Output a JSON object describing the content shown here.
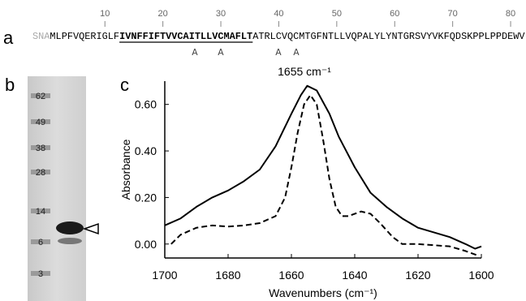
{
  "panel_a": {
    "label": "a",
    "ruler": [
      10,
      20,
      30,
      40,
      50,
      60,
      70,
      80
    ],
    "sequence": [
      {
        "text": "SNA",
        "style": "grey"
      },
      {
        "text": "MLPFVQERIGLF",
        "style": "plain"
      },
      {
        "text": "IVNFFIFTVVCAITLLVCMAFLT",
        "style": "bold-underline"
      },
      {
        "text": "ATRLCVQCMTGFNTLLVQPALYLYNTGRSVYVKFQDSKPPLPPDEWV",
        "style": "plain"
      }
    ],
    "mutations": [
      "A",
      "A",
      "A",
      "A"
    ]
  },
  "panel_b": {
    "label": "b",
    "markers": [
      62,
      49,
      38,
      28,
      14,
      6,
      3
    ]
  },
  "chart_data": {
    "type": "line",
    "label": "c",
    "annotation": "1655 cm⁻¹",
    "x_label": "Wavenumbers (cm⁻¹)",
    "y_label": "Absorbance",
    "xlim": [
      1700,
      1600
    ],
    "xticks": [
      1700,
      1680,
      1660,
      1640,
      1620,
      1600
    ],
    "ylim": [
      -0.06,
      0.7
    ],
    "yticks": [
      {
        "value": 0,
        "label": "0.00"
      },
      {
        "value": 0.2,
        "label": "0.20"
      },
      {
        "value": 0.4,
        "label": "0.40"
      },
      {
        "value": 0.6,
        "label": "0.60"
      }
    ],
    "series": [
      {
        "color": "#000000",
        "line_style": "solid",
        "x": [
          1700,
          1695,
          1690,
          1685,
          1680,
          1675,
          1670,
          1665,
          1660,
          1657,
          1655,
          1652,
          1648,
          1645,
          1640,
          1635,
          1630,
          1625,
          1620,
          1615,
          1610,
          1605,
          1602,
          1600
        ],
        "values": [
          0.08,
          0.11,
          0.16,
          0.2,
          0.23,
          0.27,
          0.32,
          0.42,
          0.56,
          0.64,
          0.68,
          0.66,
          0.56,
          0.46,
          0.33,
          0.22,
          0.16,
          0.11,
          0.07,
          0.05,
          0.03,
          0.0,
          -0.02,
          -0.01
        ]
      },
      {
        "color": "#000000",
        "line_style": "dashed",
        "x": [
          1698,
          1695,
          1690,
          1685,
          1680,
          1675,
          1670,
          1665,
          1662,
          1660,
          1658,
          1656,
          1654,
          1652,
          1650,
          1648,
          1646,
          1644,
          1642,
          1638,
          1635,
          1632,
          1628,
          1625,
          1620,
          1615,
          1610,
          1605,
          1601
        ],
        "values": [
          0.0,
          0.04,
          0.07,
          0.08,
          0.075,
          0.08,
          0.09,
          0.12,
          0.2,
          0.33,
          0.48,
          0.6,
          0.64,
          0.6,
          0.45,
          0.28,
          0.16,
          0.12,
          0.12,
          0.14,
          0.13,
          0.09,
          0.03,
          0.0,
          0.0,
          -0.005,
          -0.01,
          -0.03,
          -0.05
        ]
      }
    ]
  }
}
